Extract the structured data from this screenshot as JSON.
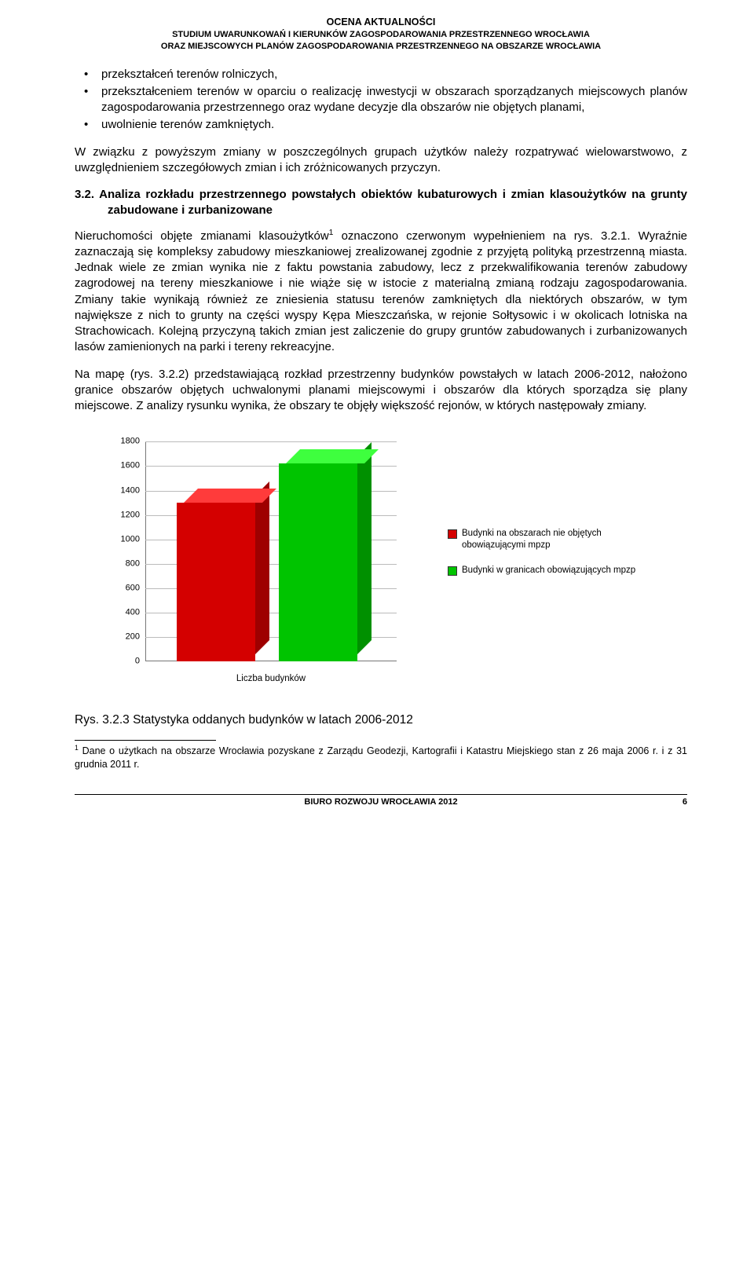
{
  "header": {
    "line1": "OCENA AKTUALNOŚCI",
    "line2": "STUDIUM UWARUNKOWAŃ I KIERUNKÓW ZAGOSPODAROWANIA PRZESTRZENNEGO WROCŁAWIA",
    "line3": "ORAZ MIEJSCOWYCH PLANÓW ZAGOSPODAROWANIA PRZESTRZENNEGO NA OBSZARZE WROCŁAWIA"
  },
  "bullets": [
    "przekształceń terenów rolniczych,",
    "przekształceniem terenów w oparciu o realizację inwestycji w obszarach sporządzanych miejscowych planów zagospodarowania przestrzennego oraz wydane decyzje dla obszarów nie objętych planami,",
    "uwolnienie terenów zamkniętych."
  ],
  "para1": "W związku z powyższym zmiany w poszczególnych grupach użytków należy rozpatrywać wielowarstwowo, z uwzględnieniem szczegółowych zmian i ich zróżnicowanych przyczyn.",
  "section_heading": "3.2. Analiza rozkładu przestrzennego powstałych obiektów kubaturowych i zmian klasoużytków na grunty zabudowane i zurbanizowane",
  "para2": "Nieruchomości objęte zmianami klasoużytków¹ oznaczono czerwonym wypełnieniem na rys. 3.2.1. Wyraźnie zaznaczają się kompleksy zabudowy mieszkaniowej zrealizowanej zgodnie z przyjętą polityką przestrzenną miasta. Jednak wiele ze zmian wynika nie z faktu powstania zabudowy, lecz z przekwalifikowania terenów zabudowy zagrodowej na tereny mieszkaniowe i nie wiąże się w istocie z materialną zmianą rodzaju zagospodarowania. Zmiany takie wynikają również ze zniesienia statusu terenów zamkniętych dla niektórych obszarów, w tym największe z nich to grunty na części wyspy Kępa Mieszczańska, w rejonie Sołtysowic i w okolicach lotniska na Strachowicach. Kolejną przyczyną takich zmian jest zaliczenie do grupy gruntów zabudowanych i zurbanizowanych lasów zamienionych na parki i tereny rekreacyjne.",
  "para3": "Na mapę (rys. 3.2.2) przedstawiającą rozkład przestrzenny budynków powstałych w latach 2006-2012, nałożono granice obszarów objętych uchwalonymi planami miejscowymi i obszarów dla których sporządza się plany miejscowe. Z analizy rysunku wynika, że obszary te objęły większość rejonów, w których następowały zmiany.",
  "chart": {
    "type": "bar-3d",
    "ylim": [
      0,
      1800
    ],
    "ytick_step": 200,
    "yticks": [
      0,
      200,
      400,
      600,
      800,
      1000,
      1200,
      1400,
      1600,
      1800
    ],
    "xlabel": "Liczba budynków",
    "background_color": "#ffffff",
    "grid_color": "#bbbbbb",
    "axis_color": "#777777",
    "tick_fontsize": 11,
    "bars": [
      {
        "value": 1300,
        "front": "#d40000",
        "top": "#ff3b3b",
        "side": "#9e0000"
      },
      {
        "value": 1620,
        "front": "#00c400",
        "top": "#3eff3e",
        "side": "#009000"
      }
    ],
    "legend": [
      {
        "label": "Budynki na obszarach nie objętych obowiązującymi mpzp",
        "color": "#d40000"
      },
      {
        "label": "Budynki w granicach obowiązujących mpzp",
        "color": "#00c400"
      }
    ]
  },
  "caption": "Rys. 3.2.3 Statystyka oddanych budynków w latach 2006-2012",
  "footnote": "¹ Dane o użytkach na obszarze Wrocławia pozyskane z Zarządu Geodezji, Kartografii i Katastru Miejskiego stan z 26 maja 2006 r. i z 31 grudnia 2011 r.",
  "footer": {
    "center": "BIURO ROZWOJU WROCŁAWIA 2012",
    "page": "6"
  }
}
